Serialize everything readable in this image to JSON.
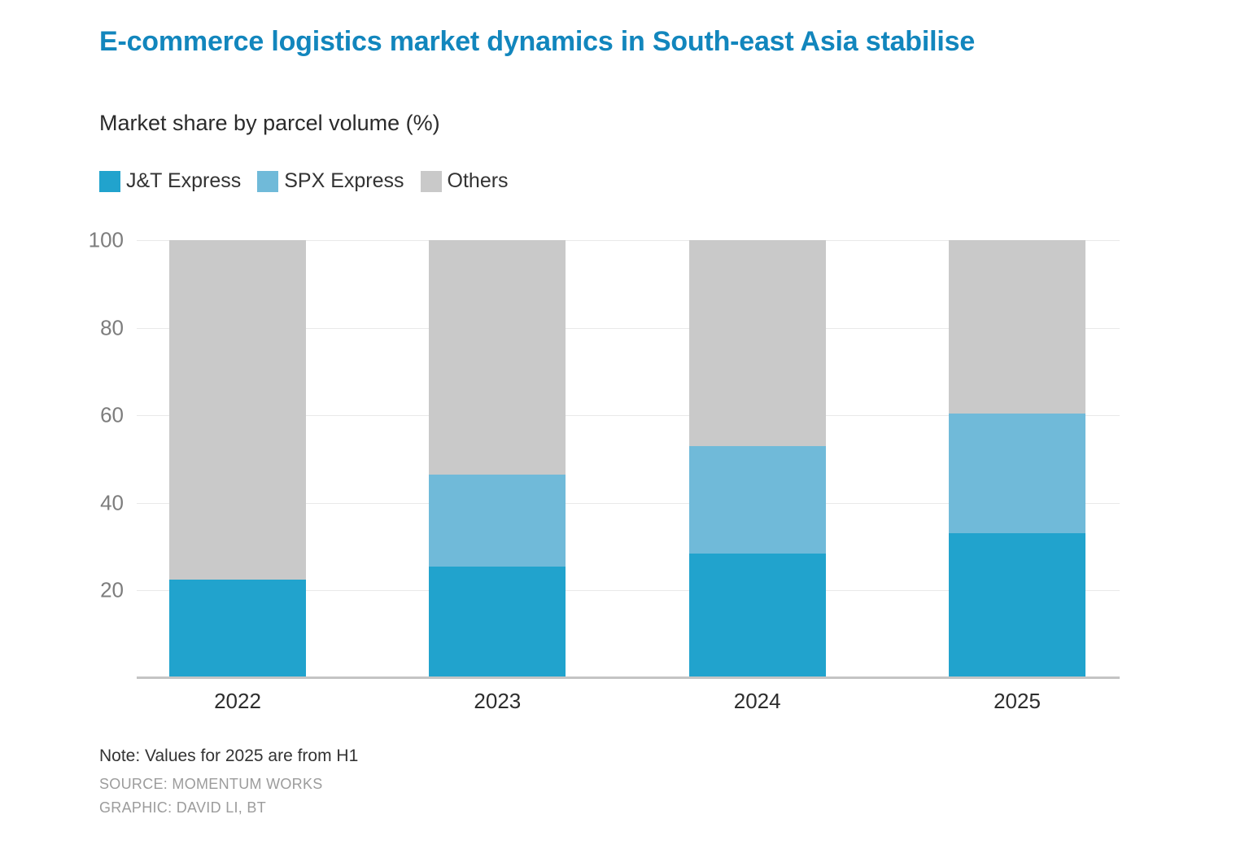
{
  "title": "E-commerce logistics market dynamics in South-east Asia stabilise",
  "subtitle": "Market share by parcel volume (%)",
  "legend": [
    {
      "label": "J&T Express",
      "color": "#21a3cd"
    },
    {
      "label": "SPX Express",
      "color": "#70bad9"
    },
    {
      "label": "Others",
      "color": "#c9c9c9"
    }
  ],
  "chart_data": {
    "type": "bar",
    "stacked": true,
    "title": "E-commerce logistics market dynamics in South-east Asia stabilise",
    "subtitle": "Market share by parcel volume (%)",
    "categories": [
      "2022",
      "2023",
      "2024",
      "2025"
    ],
    "series": [
      {
        "name": "J&T Express",
        "color": "#21a3cd",
        "values": [
          22.5,
          25.5,
          28.5,
          33
        ]
      },
      {
        "name": "SPX Express",
        "color": "#70bad9",
        "values": [
          0,
          21,
          24.5,
          27.5
        ]
      },
      {
        "name": "Others",
        "color": "#c9c9c9",
        "values": [
          77.5,
          53.5,
          47,
          39.5
        ]
      }
    ],
    "xlabel": "",
    "ylabel": "",
    "ylim": [
      0,
      100
    ],
    "yticks": [
      20,
      40,
      60,
      80,
      100
    ],
    "grid": true,
    "legend_position": "top"
  },
  "footer": {
    "note": "Note: Values for 2025 are from H1",
    "source": "SOURCE: MOMENTUM WORKS",
    "graphic": "GRAPHIC: DAVID LI, BT"
  },
  "colors": {
    "title": "#1286bd",
    "text": "#2d2d2d",
    "y_tick": "#7d7d7d",
    "muted": "#9c9c9c",
    "gridline": "#e9e9e9",
    "axis_line": "#c4c4c4",
    "background": "#ffffff"
  }
}
